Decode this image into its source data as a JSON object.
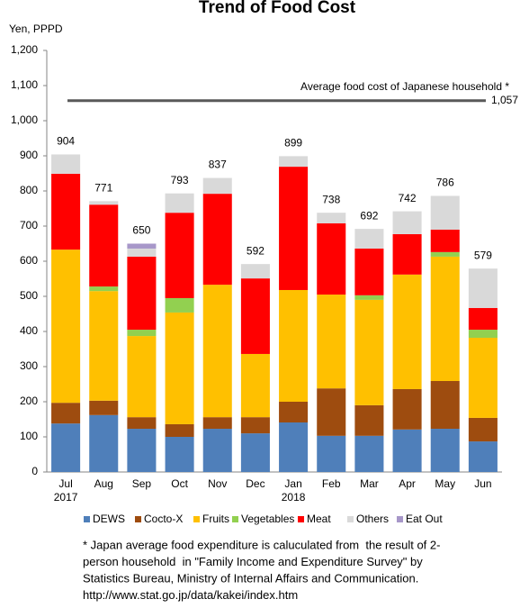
{
  "chart_data": {
    "type": "stacked_bar",
    "title": "Trend of Food Cost",
    "y_label": "Yen, PPPD",
    "categories": [
      "Jul",
      "Aug",
      "Sep",
      "Oct",
      "Nov",
      "Dec",
      "Jan",
      "Feb",
      "Mar",
      "Apr",
      "May",
      "Jun"
    ],
    "year_labels": [
      "2017",
      null,
      null,
      null,
      null,
      null,
      "2018",
      null,
      null,
      null,
      null,
      null
    ],
    "series": [
      {
        "name": "DEWS",
        "color": "#4f7fba",
        "values": [
          138,
          162,
          123,
          100,
          123,
          110,
          141,
          103,
          103,
          121,
          123,
          87
        ]
      },
      {
        "name": "Cocto-X",
        "color": "#9e4c0f",
        "values": [
          59,
          41,
          33,
          36,
          33,
          46,
          59,
          135,
          87,
          115,
          136,
          67
        ]
      },
      {
        "name": "Fruits",
        "color": "#ffc000",
        "values": [
          436,
          312,
          231,
          318,
          377,
          180,
          318,
          267,
          300,
          326,
          354,
          228
        ]
      },
      {
        "name": "Vegetables",
        "color": "#92d050",
        "values": [
          0,
          13,
          18,
          41,
          0,
          0,
          0,
          0,
          13,
          0,
          13,
          23
        ]
      },
      {
        "name": "Meat",
        "color": "#ff0000",
        "values": [
          216,
          233,
          208,
          243,
          259,
          215,
          351,
          203,
          133,
          115,
          64,
          62
        ]
      },
      {
        "name": "Others",
        "color": "#d9d9d9",
        "values": [
          55,
          10,
          23,
          55,
          45,
          41,
          30,
          30,
          56,
          65,
          96,
          112
        ]
      },
      {
        "name": "Eat Out",
        "color": "#a797c9",
        "values": [
          0,
          0,
          14,
          0,
          0,
          0,
          0,
          0,
          0,
          0,
          0,
          0
        ]
      }
    ],
    "totals": [
      904,
      771,
      650,
      793,
      837,
      592,
      899,
      738,
      692,
      742,
      786,
      579
    ],
    "reference_line": {
      "value": 1057,
      "label": "1,057",
      "text": "Average food cost of Japanese household *",
      "color": "#595959"
    },
    "ylim": [
      0,
      1200
    ],
    "yticks": [
      0,
      100,
      200,
      300,
      400,
      500,
      600,
      700,
      800,
      900,
      {
        "value": 1000,
        "label": "1,000"
      },
      {
        "value": 1100,
        "label": "1,100"
      },
      {
        "value": 1200,
        "label": "1,200"
      }
    ],
    "grid": false,
    "legend": "bottom",
    "footnote": [
      "* Japan average food expenditure is caluculated from  the result of 2-",
      "person household  in \"Family Income and Expenditure Survey\" by",
      "Statistics Bureau, Ministry of Internal Affairs and Communication.",
      "http://www.stat.go.jp/data/kakei/index.htm"
    ]
  }
}
